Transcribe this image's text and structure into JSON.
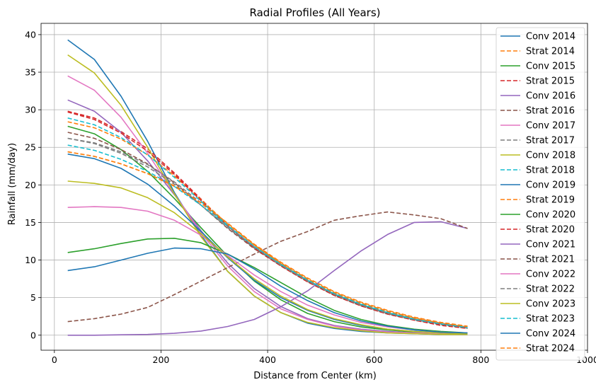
{
  "chart_data": {
    "type": "line",
    "title": "Radial Profiles (All Years)",
    "xlabel": "Distance from Center (km)",
    "ylabel": "Rainfall (mm/day)",
    "xlim": [
      -25,
      1000
    ],
    "ylim": [
      -2,
      41.5
    ],
    "xticks": [
      0,
      200,
      400,
      600,
      800,
      1000
    ],
    "yticks": [
      0,
      5,
      10,
      15,
      20,
      25,
      30,
      35,
      40
    ],
    "grid": true,
    "legend_position": "upper-right",
    "x": [
      25,
      75,
      125,
      175,
      225,
      275,
      325,
      375,
      425,
      475,
      525,
      575,
      625,
      675,
      725,
      775
    ],
    "series": [
      {
        "name": "Conv 2014",
        "color": "#1f77b4",
        "dash": false,
        "values": [
          39.3,
          36.7,
          31.8,
          25.8,
          19.0,
          13.3,
          8.5,
          5.2,
          3.0,
          1.6,
          0.9,
          0.5,
          0.3,
          0.2,
          0.1,
          0.1
        ]
      },
      {
        "name": "Strat 2014",
        "color": "#ff7f0e",
        "dash": true,
        "values": [
          24.4,
          23.8,
          22.8,
          21.5,
          19.8,
          17.6,
          14.9,
          12.0,
          9.5,
          7.3,
          5.5,
          4.1,
          3.0,
          2.2,
          1.6,
          1.1
        ]
      },
      {
        "name": "Conv 2015",
        "color": "#2ca02c",
        "dash": false,
        "values": [
          27.8,
          26.8,
          24.7,
          21.8,
          18.2,
          14.3,
          10.5,
          7.2,
          4.7,
          2.9,
          1.8,
          1.1,
          0.7,
          0.4,
          0.3,
          0.2
        ]
      },
      {
        "name": "Strat 2015",
        "color": "#d62728",
        "dash": true,
        "values": [
          29.8,
          28.9,
          27.1,
          24.8,
          21.6,
          18.1,
          14.6,
          11.7,
          9.3,
          7.2,
          5.4,
          4.0,
          2.9,
          2.0,
          1.4,
          1.0
        ]
      },
      {
        "name": "Conv 2016",
        "color": "#9467bd",
        "dash": false,
        "values": [
          31.3,
          29.8,
          27.0,
          23.2,
          18.7,
          13.9,
          9.6,
          6.2,
          3.8,
          2.2,
          1.3,
          0.8,
          0.5,
          0.3,
          0.2,
          0.1
        ]
      },
      {
        "name": "Strat 2016",
        "color": "#8c564b",
        "dash": true,
        "values": [
          27.0,
          26.2,
          24.7,
          22.8,
          20.3,
          17.3,
          14.2,
          11.5,
          9.2,
          7.1,
          5.3,
          3.9,
          2.8,
          2.0,
          1.4,
          0.9
        ]
      },
      {
        "name": "Conv 2017",
        "color": "#e377c2",
        "dash": false,
        "values": [
          34.5,
          32.6,
          29.0,
          24.2,
          18.8,
          13.6,
          9.2,
          5.8,
          3.5,
          2.1,
          1.2,
          0.7,
          0.4,
          0.3,
          0.2,
          0.1
        ]
      },
      {
        "name": "Strat 2017",
        "color": "#7f7f7f",
        "dash": true,
        "values": [
          26.2,
          25.5,
          24.2,
          22.4,
          20.1,
          17.3,
          14.3,
          11.6,
          9.3,
          7.2,
          5.4,
          4.0,
          2.9,
          2.1,
          1.5,
          1.0
        ]
      },
      {
        "name": "Conv 2018",
        "color": "#bcbd22",
        "dash": false,
        "values": [
          37.3,
          34.9,
          30.6,
          25.0,
          18.8,
          13.1,
          8.5,
          5.2,
          3.0,
          1.7,
          1.0,
          0.6,
          0.3,
          0.2,
          0.1,
          0.1
        ]
      },
      {
        "name": "Strat 2018",
        "color": "#17becf",
        "dash": true,
        "values": [
          25.3,
          24.6,
          23.4,
          21.8,
          19.8,
          17.3,
          14.5,
          11.8,
          9.5,
          7.4,
          5.6,
          4.2,
          3.1,
          2.2,
          1.5,
          1.0
        ]
      },
      {
        "name": "Conv 2019",
        "color": "#1f77b4",
        "dash": false,
        "values": [
          24.1,
          23.5,
          22.2,
          20.1,
          17.2,
          13.8,
          10.3,
          7.3,
          5.0,
          3.3,
          2.1,
          1.3,
          0.8,
          0.5,
          0.3,
          0.2
        ]
      },
      {
        "name": "Strat 2019",
        "color": "#ff7f0e",
        "dash": true,
        "values": [
          28.4,
          27.6,
          26.1,
          24.0,
          21.2,
          18.0,
          14.8,
          12.0,
          9.6,
          7.5,
          5.7,
          4.3,
          3.2,
          2.3,
          1.6,
          1.1
        ]
      },
      {
        "name": "Conv 2020",
        "color": "#2ca02c",
        "dash": false,
        "values": [
          11.0,
          11.5,
          12.2,
          12.8,
          12.9,
          12.3,
          10.8,
          9.0,
          7.0,
          5.0,
          3.3,
          2.1,
          1.3,
          0.8,
          0.5,
          0.3
        ]
      },
      {
        "name": "Strat 2020",
        "color": "#d62728",
        "dash": true,
        "values": [
          29.7,
          28.7,
          26.9,
          24.5,
          21.4,
          17.9,
          14.5,
          11.6,
          9.2,
          7.1,
          5.3,
          3.9,
          2.8,
          2.0,
          1.3,
          0.9
        ]
      },
      {
        "name": "Conv 2021",
        "color": "#9467bd",
        "dash": false,
        "values": [
          0.0,
          0.0,
          0.05,
          0.1,
          0.25,
          0.55,
          1.15,
          2.1,
          3.8,
          5.9,
          8.6,
          11.2,
          13.4,
          15.0,
          15.1,
          14.2
        ]
      },
      {
        "name": "Strat 2021",
        "color": "#8c564b",
        "dash": true,
        "values": [
          1.8,
          2.2,
          2.8,
          3.7,
          5.4,
          7.2,
          9.0,
          10.8,
          12.5,
          13.8,
          15.3,
          15.9,
          16.4,
          16.0,
          15.5,
          14.2
        ]
      },
      {
        "name": "Conv 2022",
        "color": "#e377c2",
        "dash": false,
        "values": [
          17.0,
          17.1,
          17.0,
          16.5,
          15.3,
          13.3,
          10.6,
          8.0,
          5.8,
          4.0,
          2.7,
          1.7,
          1.1,
          0.7,
          0.4,
          0.3
        ]
      },
      {
        "name": "Strat 2022",
        "color": "#7f7f7f",
        "dash": true,
        "values": [
          26.2,
          25.6,
          24.4,
          22.7,
          20.4,
          17.6,
          14.5,
          11.7,
          9.3,
          7.2,
          5.4,
          4.0,
          2.9,
          2.1,
          1.5,
          1.0
        ]
      },
      {
        "name": "Conv 2023",
        "color": "#bcbd22",
        "dash": false,
        "values": [
          20.5,
          20.2,
          19.6,
          18.3,
          16.3,
          13.5,
          10.4,
          7.5,
          5.2,
          3.4,
          2.2,
          1.4,
          0.8,
          0.5,
          0.3,
          0.2
        ]
      },
      {
        "name": "Strat 2023",
        "color": "#17becf",
        "dash": true,
        "values": [
          28.9,
          28.0,
          26.3,
          24.0,
          21.0,
          17.8,
          14.6,
          11.8,
          9.4,
          7.3,
          5.5,
          4.1,
          3.0,
          2.1,
          1.5,
          1.0
        ]
      },
      {
        "name": "Conv 2024",
        "color": "#1f77b4",
        "dash": false,
        "values": [
          8.6,
          9.1,
          10.0,
          10.9,
          11.6,
          11.5,
          10.8,
          8.8,
          6.5,
          4.6,
          3.0,
          1.9,
          1.2,
          0.7,
          0.4,
          0.3
        ]
      },
      {
        "name": "Strat 2024",
        "color": "#ff7f0e",
        "dash": true,
        "values": [
          24.4,
          23.8,
          22.8,
          21.5,
          19.9,
          17.6,
          14.9,
          12.1,
          9.7,
          7.6,
          5.8,
          4.4,
          3.3,
          2.4,
          1.7,
          1.2
        ]
      }
    ]
  }
}
